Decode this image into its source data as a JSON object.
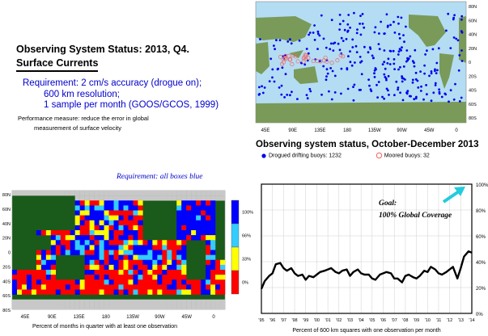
{
  "header": {
    "title_line1": "Observing System Status:  2013, Q4.",
    "title_line2": "Surface Currents"
  },
  "requirement": {
    "line1": "Requirement: 2 cm/s accuracy (drogue on);",
    "line2": "600 km resolution;",
    "line3": "1 sample per month (GOOS/GCOS, 1999)"
  },
  "performance": {
    "line1": "Performance measure: reduce the error in global",
    "line2": "measurement of surface velocity"
  },
  "colors": {
    "ocean": "#b4ddf3",
    "land": "#7a9a5a",
    "drifter": "#0000ee",
    "moored": "#ee6666",
    "box_blue": "#0000ff",
    "box_cyan": "#33ccff",
    "box_yellow": "#ffff00",
    "box_red": "#ff0000",
    "land_box": "#1a5a1a",
    "ice": "#c8c8c8",
    "goal_arrow": "#22ccdd"
  },
  "map1": {
    "title": "Observing system status, October-December 2013",
    "lon_labels": [
      "45E",
      "90E",
      "135E",
      "180",
      "135W",
      "90W",
      "45W",
      "0"
    ],
    "lat_labels": [
      "80N",
      "60N",
      "40N",
      "20N",
      "0",
      "20S",
      "40S",
      "60S",
      "80S"
    ],
    "legend": {
      "drogued": "Drogued drifting buoys: 1232",
      "moored": "Moored buoys: 32"
    }
  },
  "map2": {
    "requirement_note": "Requirement: all boxes blue",
    "lon_labels": [
      "45E",
      "90E",
      "135E",
      "180",
      "135W",
      "90W",
      "45W",
      "0"
    ],
    "lat_labels": [
      "80N",
      "60N",
      "40N",
      "20N",
      "0",
      "20S",
      "40S",
      "60S",
      "80S"
    ],
    "colorbar_labels": [
      "100%",
      "66%",
      "33%",
      "0%"
    ],
    "caption": "Percent of months in quarter with at least one observation"
  },
  "chart_data": {
    "type": "line",
    "title": "",
    "xlabel": "Percent of 600 km squares with one observation per month",
    "ylabel": "",
    "x": [
      1995.0,
      1995.3,
      1995.7,
      1996.0,
      1996.3,
      1996.7,
      1997.0,
      1997.3,
      1997.7,
      1998.0,
      1998.3,
      1998.7,
      1999.0,
      1999.3,
      1999.7,
      2000.0,
      2000.3,
      2000.7,
      2001.0,
      2001.3,
      2001.7,
      2002.0,
      2002.3,
      2002.7,
      2003.0,
      2003.3,
      2003.7,
      2004.0,
      2004.3,
      2004.7,
      2005.0,
      2005.3,
      2005.7,
      2006.0,
      2006.3,
      2006.7,
      2007.0,
      2007.3,
      2007.7,
      2008.0,
      2008.3,
      2008.7,
      2009.0,
      2009.3,
      2009.7,
      2010.0,
      2010.3,
      2010.7,
      2011.0,
      2011.3,
      2011.7,
      2012.0,
      2012.3,
      2012.7,
      2013.0,
      2013.3,
      2013.7,
      2014.0
    ],
    "values": [
      19,
      25,
      29,
      31,
      38,
      39,
      35,
      33,
      35,
      31,
      29,
      30,
      26,
      29,
      28,
      30,
      32,
      33,
      34,
      35,
      32,
      31,
      33,
      34,
      29,
      32,
      34,
      31,
      30,
      30,
      27,
      26,
      30,
      31,
      32,
      31,
      27,
      27,
      24,
      29,
      30,
      28,
      27,
      29,
      33,
      32,
      36,
      34,
      31,
      30,
      32,
      34,
      36,
      27,
      35,
      44,
      48,
      47
    ],
    "x_tick_labels": [
      "'95",
      "'96",
      "'97",
      "'98",
      "'99",
      "'00",
      "'01",
      "'02",
      "'03",
      "'04",
      "'05",
      "'06",
      "'07",
      "'08",
      "'09",
      "'10",
      "'11",
      "'12",
      "'13",
      "'14"
    ],
    "y_tick_labels": [
      "0%",
      "20%",
      "40%",
      "60%",
      "80%",
      "100%"
    ],
    "xlim": [
      1995,
      2014
    ],
    "ylim": [
      0,
      100
    ],
    "grid": true,
    "annotations": [
      "Goal:",
      "100% Global Coverage"
    ]
  }
}
